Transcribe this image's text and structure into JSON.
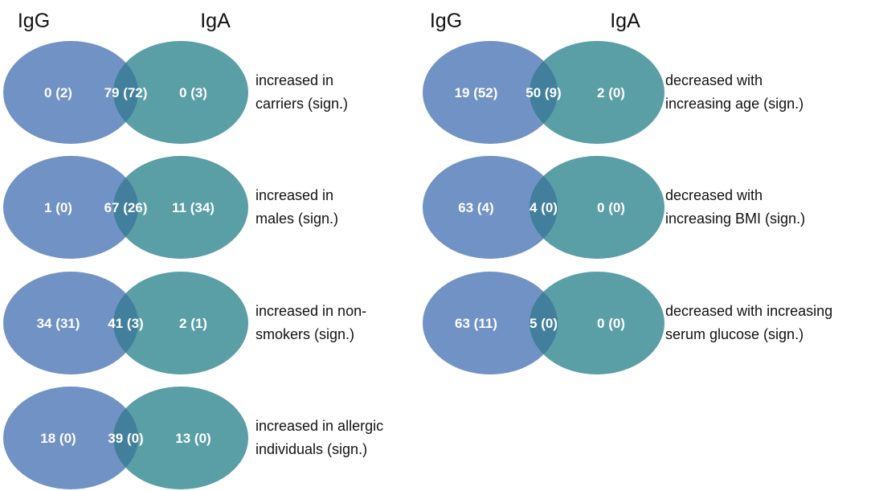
{
  "colors": {
    "igg": "#7092c4",
    "iga": "#5a9ea6",
    "overlap": "#417f9c",
    "count_text": "#ffffff",
    "label_text": "#111111"
  },
  "columns": [
    {
      "header": {
        "left": "IgG",
        "right": "IgA"
      },
      "diagrams": [
        {
          "left": "0 (2)",
          "overlap": "79 (72)",
          "right": "0 (3)",
          "label": [
            "increased in",
            "carriers (sign.)"
          ]
        },
        {
          "left": "1 (0)",
          "overlap": "67 (26)",
          "right": "11 (34)",
          "label": [
            "increased in",
            "males (sign.)"
          ]
        },
        {
          "left": "34 (31)",
          "overlap": "41 (3)",
          "right": "2 (1)",
          "label": [
            "increased in non-",
            "smokers (sign.)"
          ]
        },
        {
          "left": "18 (0)",
          "overlap": "39 (0)",
          "right": "13 (0)",
          "label": [
            "increased in allergic",
            "individuals (sign.)"
          ]
        }
      ]
    },
    {
      "header": {
        "left": "IgG",
        "right": "IgA"
      },
      "diagrams": [
        {
          "left": "19 (52)",
          "overlap": "50 (9)",
          "right": "2 (0)",
          "label": [
            "decreased with",
            "increasing age (sign.)"
          ]
        },
        {
          "left": "63 (4)",
          "overlap": "4 (0)",
          "right": "0 (0)",
          "label": [
            "decreased with",
            "increasing BMI (sign.)"
          ]
        },
        {
          "left": "63 (11)",
          "overlap": "5 (0)",
          "right": "0 (0)",
          "label": [
            "decreased with increasing",
            "serum glucose (sign.)"
          ]
        }
      ]
    }
  ]
}
